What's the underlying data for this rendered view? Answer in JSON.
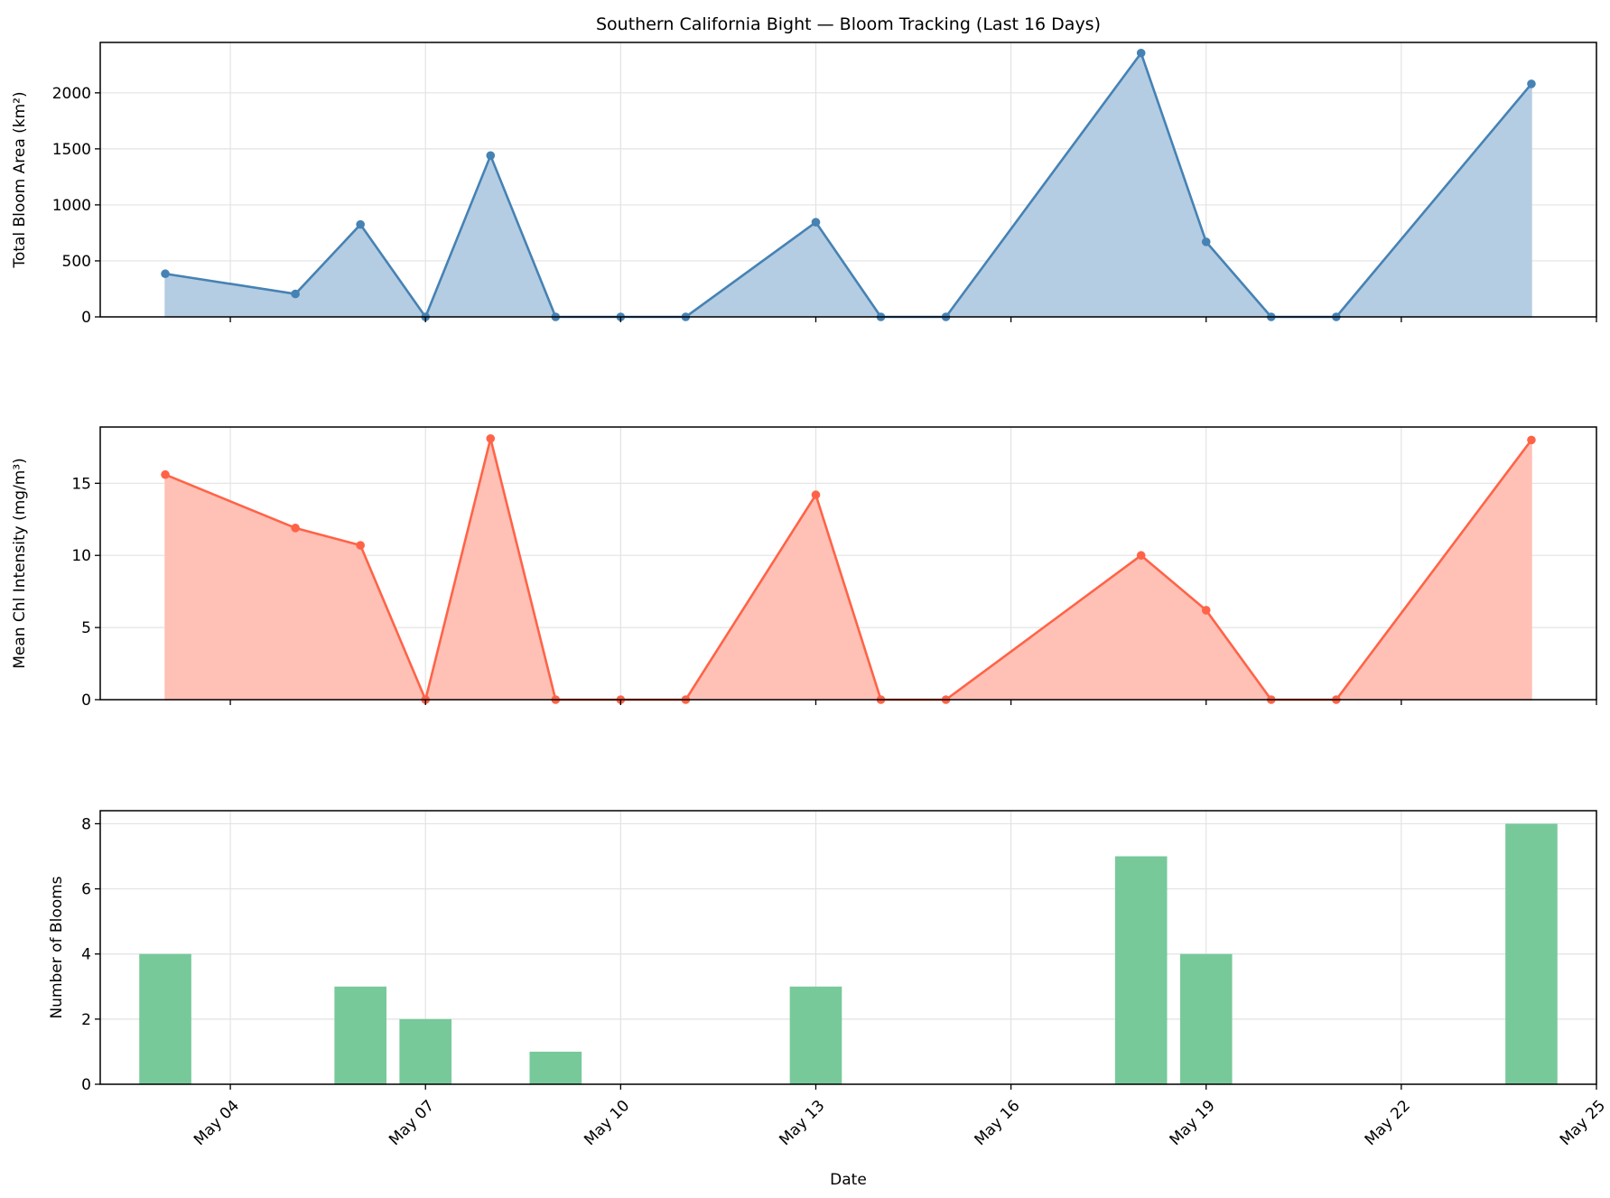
{
  "figure": {
    "title": "Southern California Bight — Bloom Tracking (Last 16 Days)",
    "xlabel": "Date"
  },
  "chart_data": [
    {
      "type": "area",
      "title": "Southern California Bight — Bloom Tracking (Last 16 Days)",
      "xlabel": "",
      "ylabel": "Total Bloom Area (km²)",
      "x": [
        "May 03",
        "May 05",
        "May 06",
        "May 07",
        "May 08",
        "May 09",
        "May 10",
        "May 11",
        "May 13",
        "May 14",
        "May 15",
        "May 18",
        "May 19",
        "May 20",
        "May 21",
        "May 24"
      ],
      "values": [
        385,
        205,
        825,
        0,
        1440,
        0,
        0,
        0,
        845,
        0,
        0,
        2355,
        670,
        0,
        0,
        2080
      ],
      "xlim": [
        "2025-05-02",
        "2025-05-25"
      ],
      "ylim": [
        0,
        2450
      ],
      "yticks": [
        0,
        500,
        1000,
        1500,
        2000
      ],
      "color": "#4682b4",
      "fill_color": "#b4cde2",
      "grid": true
    },
    {
      "type": "area",
      "xlabel": "",
      "ylabel": "Mean Chl Intensity (mg/m³)",
      "x": [
        "May 03",
        "May 05",
        "May 06",
        "May 07",
        "May 08",
        "May 09",
        "May 10",
        "May 11",
        "May 13",
        "May 14",
        "May 15",
        "May 18",
        "May 19",
        "May 20",
        "May 21",
        "May 24"
      ],
      "values": [
        15.6,
        11.9,
        10.7,
        0,
        18.1,
        0,
        0,
        0,
        14.2,
        0,
        0,
        10.0,
        6.2,
        0,
        0,
        18.0
      ],
      "xlim": [
        "2025-05-02",
        "2025-05-25"
      ],
      "ylim": [
        0,
        18.9
      ],
      "yticks": [
        0,
        5,
        10,
        15
      ],
      "color": "#ff6347",
      "fill_color": "#ffc0b5",
      "grid": true
    },
    {
      "type": "bar",
      "xlabel": "Date",
      "ylabel": "Number of Blooms",
      "x": [
        "May 03",
        "May 05",
        "May 06",
        "May 07",
        "May 08",
        "May 09",
        "May 10",
        "May 11",
        "May 13",
        "May 14",
        "May 15",
        "May 18",
        "May 19",
        "May 20",
        "May 21",
        "May 24"
      ],
      "values": [
        4,
        0,
        3,
        2,
        0,
        1,
        0,
        0,
        3,
        0,
        0,
        7,
        4,
        0,
        0,
        8
      ],
      "xlim": [
        "2025-05-02",
        "2025-05-25"
      ],
      "ylim": [
        0,
        8.4
      ],
      "yticks": [
        0,
        2,
        4,
        6,
        8
      ],
      "xticks": [
        "May 04",
        "May 07",
        "May 10",
        "May 13",
        "May 16",
        "May 19",
        "May 22",
        "May 25"
      ],
      "color": "#77c99a",
      "grid": true
    }
  ]
}
